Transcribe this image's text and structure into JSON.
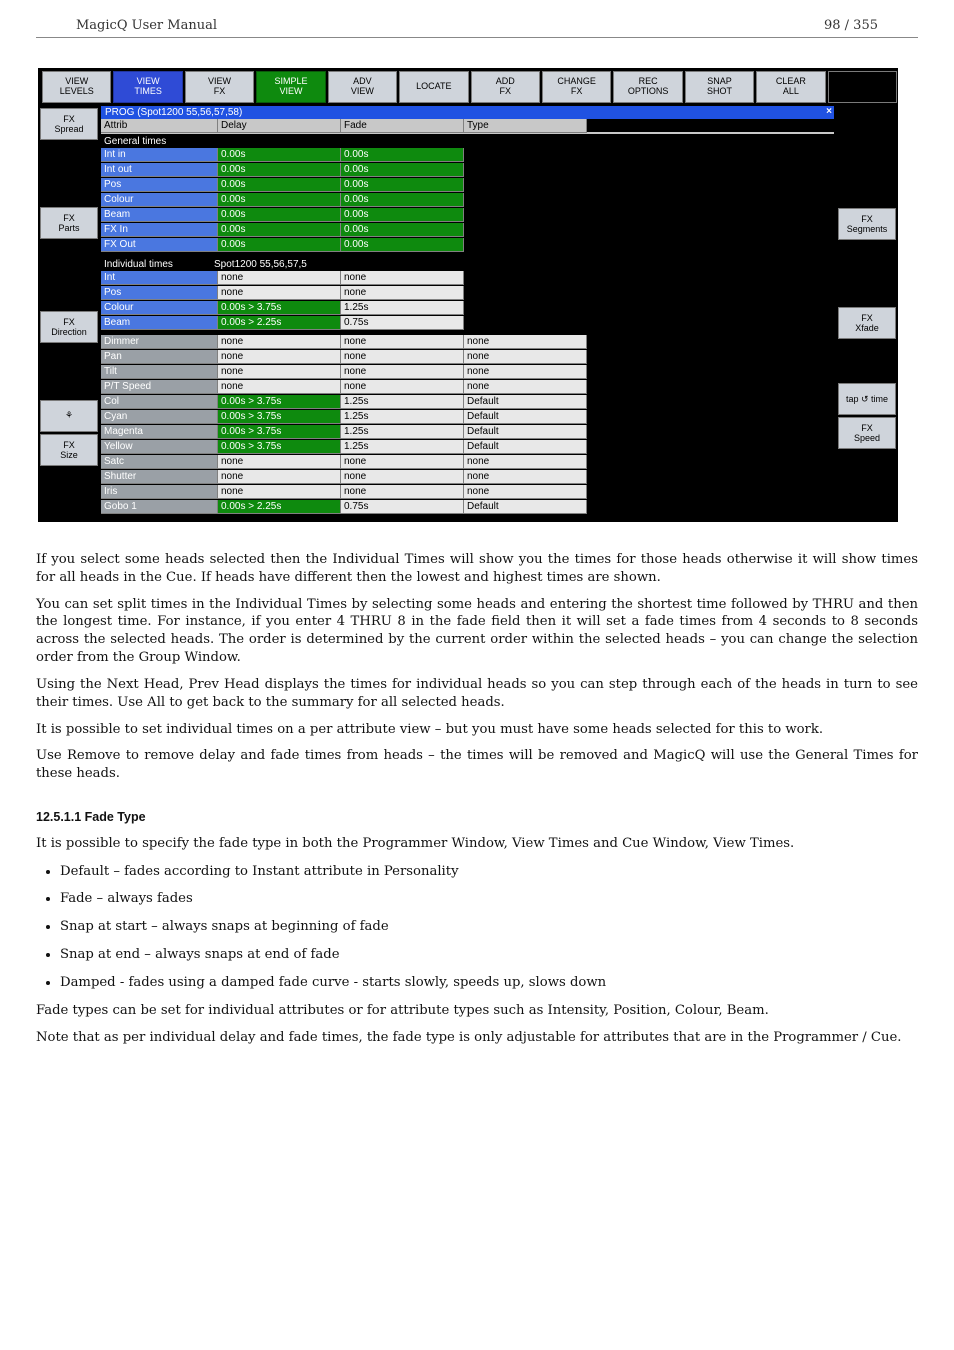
{
  "page_header": {
    "left": "MagicQ User Manual",
    "right": "98 / 355"
  },
  "top_buttons": [
    {
      "l1": "VIEW",
      "l2": "LEVELS",
      "style": "btn-gray"
    },
    {
      "l1": "VIEW",
      "l2": "TIMES",
      "style": "btn-blue"
    },
    {
      "l1": "VIEW",
      "l2": "FX",
      "style": "btn-gray"
    },
    {
      "l1": "SIMPLE",
      "l2": "VIEW",
      "style": "btn-green"
    },
    {
      "l1": "ADV",
      "l2": "VIEW",
      "style": "btn-gray"
    },
    {
      "l1": "LOCATE",
      "l2": "",
      "style": "btn-gray"
    },
    {
      "l1": "ADD",
      "l2": "FX",
      "style": "btn-gray"
    },
    {
      "l1": "CHANGE",
      "l2": "FX",
      "style": "btn-gray"
    },
    {
      "l1": "REC",
      "l2": "OPTIONS",
      "style": "btn-gray"
    },
    {
      "l1": "SNAP",
      "l2": "SHOT",
      "style": "btn-gray"
    },
    {
      "l1": "CLEAR",
      "l2": "ALL",
      "style": "btn-gray"
    },
    {
      "l1": "",
      "l2": "",
      "style": "btn-dark"
    }
  ],
  "left_buttons": [
    {
      "l1": "FX",
      "l2": "Spread"
    },
    {
      "l1": "FX",
      "l2": "Parts"
    },
    {
      "l1": "FX",
      "l2": "Direction"
    },
    {
      "l1": "⚘",
      "l2": ""
    },
    {
      "l1": "FX",
      "l2": "Size"
    }
  ],
  "right_buttons": [
    {
      "l1": "FX",
      "l2": "Segments"
    },
    {
      "l1": "FX",
      "l2": "Xfade"
    },
    {
      "l1": "tap ↺ time",
      "l2": ""
    },
    {
      "l1": "FX",
      "l2": "Speed"
    }
  ],
  "window_title": "PROG (Spot1200 55,56,57,58)",
  "columns": {
    "attrib": "Attrib",
    "delay": "Delay",
    "fade": "Fade",
    "type": "Type"
  },
  "section_general": "General times",
  "rows_general": [
    {
      "label": "Int in",
      "lab": "lab-blue",
      "delay": "0.00s",
      "fade": "0.00s"
    },
    {
      "label": "Int out",
      "lab": "lab-blue",
      "delay": "0.00s",
      "fade": "0.00s"
    },
    {
      "label": "Pos",
      "lab": "lab-blue",
      "delay": "0.00s",
      "fade": "0.00s"
    },
    {
      "label": "Colour",
      "lab": "lab-blue",
      "delay": "0.00s",
      "fade": "0.00s"
    },
    {
      "label": "Beam",
      "lab": "lab-blue",
      "delay": "0.00s",
      "fade": "0.00s"
    },
    {
      "label": "FX In",
      "lab": "lab-blue",
      "delay": "0.00s",
      "fade": "0.00s"
    },
    {
      "label": "FX Out",
      "lab": "lab-blue",
      "delay": "0.00s",
      "fade": "0.00s"
    }
  ],
  "section_individual_l": "Individual times",
  "section_individual_r": "Spot1200 55,56,57,5",
  "rows_individual": [
    {
      "label": "Int",
      "lab": "lab-blue",
      "delay": "none",
      "dcls": "val-white",
      "fade": "none",
      "fcls": "val-white"
    },
    {
      "label": "Pos",
      "lab": "lab-blue",
      "delay": "none",
      "dcls": "val-white",
      "fade": "none",
      "fcls": "val-white"
    },
    {
      "label": "Colour",
      "lab": "lab-blue",
      "delay": "0.00s > 3.75s",
      "dcls": "val-green",
      "fade": "1.25s",
      "fcls": "val-white"
    },
    {
      "label": "Beam",
      "lab": "lab-blue",
      "delay": "0.00s > 2.25s",
      "dcls": "val-green",
      "fade": "0.75s",
      "fcls": "val-white"
    }
  ],
  "rows_block3": [
    {
      "label": "Dimmer",
      "lab": "lab-gray",
      "delay": "none",
      "dcls": "val-white",
      "fade": "none",
      "fcls": "val-white",
      "type": "none",
      "tcls": "val-white"
    },
    {
      "label": "Pan",
      "lab": "lab-gray",
      "delay": "none",
      "dcls": "val-white",
      "fade": "none",
      "fcls": "val-white",
      "type": "none",
      "tcls": "val-white"
    },
    {
      "label": "Tilt",
      "lab": "lab-gray",
      "delay": "none",
      "dcls": "val-white",
      "fade": "none",
      "fcls": "val-white",
      "type": "none",
      "tcls": "val-white"
    },
    {
      "label": "P/T Speed",
      "lab": "lab-gray",
      "delay": "none",
      "dcls": "val-white",
      "fade": "none",
      "fcls": "val-white",
      "type": "none",
      "tcls": "val-white"
    },
    {
      "label": "Col",
      "lab": "lab-gray",
      "delay": "0.00s > 3.75s",
      "dcls": "val-green",
      "fade": "1.25s",
      "fcls": "val-white",
      "type": "Default",
      "tcls": "val-white"
    },
    {
      "label": "Cyan",
      "lab": "lab-gray",
      "delay": "0.00s > 3.75s",
      "dcls": "val-green",
      "fade": "1.25s",
      "fcls": "val-white",
      "type": "Default",
      "tcls": "val-white"
    },
    {
      "label": "Magenta",
      "lab": "lab-gray",
      "delay": "0.00s > 3.75s",
      "dcls": "val-green",
      "fade": "1.25s",
      "fcls": "val-white",
      "type": "Default",
      "tcls": "val-white"
    },
    {
      "label": "Yellow",
      "lab": "lab-gray",
      "delay": "0.00s > 3.75s",
      "dcls": "val-green",
      "fade": "1.25s",
      "fcls": "val-white",
      "type": "Default",
      "tcls": "val-white"
    },
    {
      "label": "Satc",
      "lab": "lab-gray",
      "delay": "none",
      "dcls": "val-white",
      "fade": "none",
      "fcls": "val-white",
      "type": "none",
      "tcls": "val-white"
    },
    {
      "label": "Shutter",
      "lab": "lab-gray",
      "delay": "none",
      "dcls": "val-white",
      "fade": "none",
      "fcls": "val-white",
      "type": "none",
      "tcls": "val-white"
    },
    {
      "label": "Iris",
      "lab": "lab-gray",
      "delay": "none",
      "dcls": "val-white",
      "fade": "none",
      "fcls": "val-white",
      "type": "none",
      "tcls": "val-white"
    },
    {
      "label": "Gobo 1",
      "lab": "lab-gray",
      "delay": "0.00s > 2.25s",
      "dcls": "val-green",
      "fade": "0.75s",
      "fcls": "val-white",
      "type": "Default",
      "tcls": "val-white"
    }
  ],
  "paras": {
    "p1": "If you select some heads selected then the Individual Times will show you the times for those heads otherwise it will show times for all heads in the Cue. If heads have different then the lowest and highest times are shown.",
    "p2": "You can set split times in the Individual Times by selecting some heads and entering the shortest time followed by THRU and then the longest time. For instance, if you enter 4 THRU 8 in the fade field then it will set a fade times from 4 seconds to 8 seconds across the selected heads. The order is determined by the current order within the selected heads – you can change the selection order from the Group Window.",
    "p3": "Using the Next Head, Prev Head displays the times for individual heads so you can step through each of the heads in turn to see their times. Use All to get back to the summary for all selected heads.",
    "p4": "It is possible to set individual times on a per attribute view – but you must have some heads selected for this to work.",
    "p5": "Use Remove to remove delay and fade times from heads – the times will be removed and MagicQ will use the General Times for these heads."
  },
  "section_heading": "12.5.1.1   Fade Type",
  "section_intro": "It is possible to specify the fade type in both the Programmer Window, View Times and Cue Window, View Times.",
  "bullets": [
    "Default – fades according to Instant attribute in Personality",
    "Fade – always fades",
    "Snap at start – always snaps at beginning of fade",
    "Snap at end – always snaps at end of fade",
    "Damped - fades using a damped fade curve - starts slowly, speeds up, slows down"
  ],
  "after1": "Fade types can be set for individual attributes or for attribute types such as Intensity, Position, Colour, Beam.",
  "after2": "Note that as per individual delay and fade times, the fade type is only adjustable for attributes that are in the Programmer / Cue."
}
